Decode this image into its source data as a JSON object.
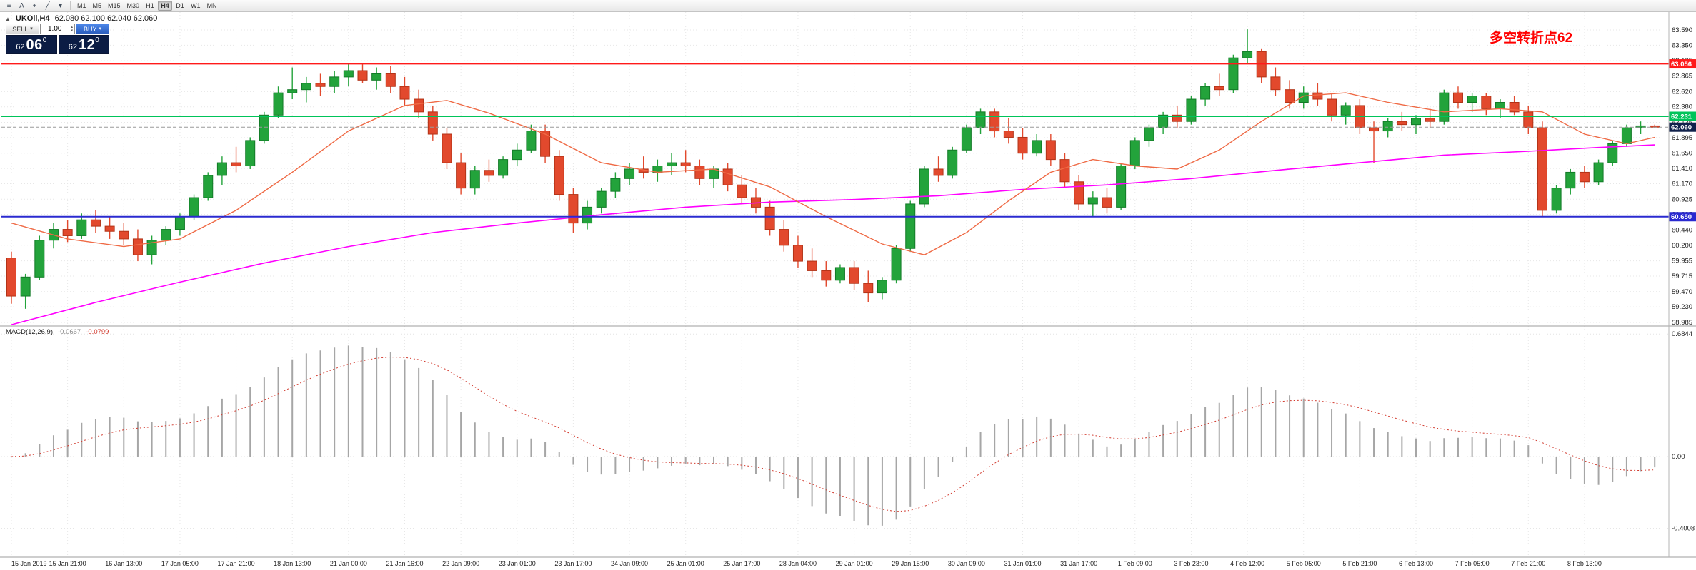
{
  "app": {
    "toolbar": {
      "icons": [
        {
          "name": "chart-menu-icon",
          "glyph": "≡"
        },
        {
          "name": "cursor-tool-icon",
          "glyph": "A"
        },
        {
          "name": "crosshair-tool-icon",
          "glyph": "+"
        },
        {
          "name": "line-tool-icon",
          "glyph": "╱"
        },
        {
          "name": "tools-dropdown-icon",
          "glyph": "▾"
        }
      ],
      "timeframes": [
        "M1",
        "M5",
        "M15",
        "M30",
        "H1",
        "H4",
        "D1",
        "W1",
        "MN"
      ],
      "active_timeframe": "H4"
    },
    "chart_header": {
      "expand_glyph": "▲",
      "symbol": "UKOil,H4",
      "ohlc": "62.080 62.100 62.040 62.060"
    },
    "trade_panel": {
      "sell_label": "SELL",
      "buy_label": "BUY",
      "volume": "1.00",
      "sell_caret": "▾",
      "buy_caret": "▾",
      "spin_up": "▴",
      "spin_down": "▾",
      "sell_price": {
        "prefix": "62",
        "big": "06",
        "sup": "0"
      },
      "buy_price": {
        "prefix": "62",
        "big": "12",
        "sup": "0"
      }
    },
    "annotation": {
      "text": "多空转折点62",
      "color": "#FF0000"
    }
  },
  "chart_data": {
    "type": "candlestick",
    "symbol": "UKOil",
    "timeframe": "H4",
    "colors": {
      "up": "#23a33b",
      "up_border": "#127a27",
      "down": "#e2492d",
      "down_border": "#b23317",
      "grid": "#e7e7e7"
    },
    "price_axis": {
      "ticks": [
        63.59,
        63.35,
        63.105,
        62.865,
        62.62,
        62.38,
        62.135,
        61.895,
        61.65,
        61.41,
        61.17,
        60.925,
        60.685,
        60.44,
        60.2,
        59.955,
        59.715,
        59.47,
        59.23,
        58.985
      ]
    },
    "time_axis": [
      "15 Jan 2019",
      "15 Jan 21:00",
      "16 Jan 13:00",
      "17 Jan 05:00",
      "17 Jan 21:00",
      "18 Jan 13:00",
      "21 Jan 00:00",
      "21 Jan 16:00",
      "22 Jan 09:00",
      "23 Jan 01:00",
      "23 Jan 17:00",
      "24 Jan 09:00",
      "25 Jan 01:00",
      "25 Jan 17:00",
      "28 Jan 04:00",
      "29 Jan 01:00",
      "29 Jan 15:00",
      "30 Jan 09:00",
      "31 Jan 01:00",
      "31 Jan 17:00",
      "1 Feb 09:00",
      "3 Feb 23:00",
      "4 Feb 12:00",
      "5 Feb 05:00",
      "5 Feb 21:00",
      "6 Feb 13:00",
      "7 Feb 05:00",
      "7 Feb 21:00",
      "8 Feb 13:00"
    ],
    "candles": [
      [
        60.0,
        60.1,
        59.28,
        59.4
      ],
      [
        59.4,
        59.75,
        59.2,
        59.7
      ],
      [
        59.7,
        60.35,
        59.65,
        60.28
      ],
      [
        60.28,
        60.55,
        60.15,
        60.45
      ],
      [
        60.45,
        60.6,
        60.25,
        60.35
      ],
      [
        60.35,
        60.7,
        60.3,
        60.6
      ],
      [
        60.6,
        60.75,
        60.4,
        60.5
      ],
      [
        60.5,
        60.65,
        60.3,
        60.42
      ],
      [
        60.42,
        60.55,
        60.2,
        60.3
      ],
      [
        60.3,
        60.45,
        59.95,
        60.05
      ],
      [
        60.05,
        60.35,
        59.9,
        60.28
      ],
      [
        60.28,
        60.5,
        60.2,
        60.45
      ],
      [
        60.45,
        60.7,
        60.35,
        60.65
      ],
      [
        60.65,
        61.0,
        60.6,
        60.95
      ],
      [
        60.95,
        61.35,
        60.9,
        61.3
      ],
      [
        61.3,
        61.6,
        61.15,
        61.5
      ],
      [
        61.5,
        61.75,
        61.35,
        61.45
      ],
      [
        61.45,
        61.9,
        61.4,
        61.85
      ],
      [
        61.85,
        62.3,
        61.8,
        62.25
      ],
      [
        62.25,
        62.7,
        62.2,
        62.6
      ],
      [
        62.6,
        63.0,
        62.5,
        62.65
      ],
      [
        62.65,
        62.85,
        62.45,
        62.75
      ],
      [
        62.75,
        62.9,
        62.55,
        62.7
      ],
      [
        62.7,
        62.95,
        62.6,
        62.85
      ],
      [
        62.85,
        63.05,
        62.7,
        62.95
      ],
      [
        62.95,
        63.05,
        62.75,
        62.8
      ],
      [
        62.8,
        63.0,
        62.65,
        62.9
      ],
      [
        62.9,
        63.02,
        62.6,
        62.7
      ],
      [
        62.7,
        62.85,
        62.4,
        62.5
      ],
      [
        62.5,
        62.65,
        62.2,
        62.3
      ],
      [
        62.3,
        62.4,
        61.85,
        61.95
      ],
      [
        61.95,
        62.05,
        61.4,
        61.5
      ],
      [
        61.5,
        61.65,
        61.0,
        61.1
      ],
      [
        61.1,
        61.45,
        61.0,
        61.38
      ],
      [
        61.38,
        61.55,
        61.2,
        61.3
      ],
      [
        61.3,
        61.6,
        61.25,
        61.55
      ],
      [
        61.55,
        61.8,
        61.45,
        61.7
      ],
      [
        61.7,
        62.1,
        61.65,
        62.0
      ],
      [
        62.0,
        62.1,
        61.5,
        61.6
      ],
      [
        61.6,
        61.7,
        60.9,
        61.0
      ],
      [
        61.0,
        61.1,
        60.4,
        60.55
      ],
      [
        60.55,
        60.9,
        60.45,
        60.8
      ],
      [
        60.8,
        61.1,
        60.7,
        61.05
      ],
      [
        61.05,
        61.35,
        60.95,
        61.25
      ],
      [
        61.25,
        61.5,
        61.15,
        61.4
      ],
      [
        61.4,
        61.6,
        61.25,
        61.35
      ],
      [
        61.35,
        61.55,
        61.2,
        61.45
      ],
      [
        61.45,
        61.65,
        61.3,
        61.5
      ],
      [
        61.5,
        61.7,
        61.35,
        61.45
      ],
      [
        61.45,
        61.55,
        61.15,
        61.25
      ],
      [
        61.25,
        61.45,
        61.1,
        61.4
      ],
      [
        61.4,
        61.5,
        61.05,
        61.15
      ],
      [
        61.15,
        61.3,
        60.85,
        60.95
      ],
      [
        60.95,
        61.1,
        60.7,
        60.8
      ],
      [
        60.8,
        60.9,
        60.35,
        60.45
      ],
      [
        60.45,
        60.6,
        60.1,
        60.2
      ],
      [
        60.2,
        60.35,
        59.85,
        59.95
      ],
      [
        59.95,
        60.15,
        59.7,
        59.8
      ],
      [
        59.8,
        59.95,
        59.55,
        59.65
      ],
      [
        59.65,
        59.9,
        59.6,
        59.85
      ],
      [
        59.85,
        59.95,
        59.5,
        59.6
      ],
      [
        59.6,
        59.8,
        59.3,
        59.45
      ],
      [
        59.45,
        59.7,
        59.35,
        59.65
      ],
      [
        59.65,
        60.2,
        59.6,
        60.15
      ],
      [
        60.15,
        60.9,
        60.1,
        60.85
      ],
      [
        60.85,
        61.45,
        60.8,
        61.4
      ],
      [
        61.4,
        61.6,
        61.2,
        61.3
      ],
      [
        61.3,
        61.75,
        61.25,
        61.7
      ],
      [
        61.7,
        62.1,
        61.65,
        62.05
      ],
      [
        62.05,
        62.35,
        61.95,
        62.3
      ],
      [
        62.3,
        62.35,
        61.9,
        62.0
      ],
      [
        62.0,
        62.2,
        61.8,
        61.9
      ],
      [
        61.9,
        62.05,
        61.55,
        61.65
      ],
      [
        61.65,
        61.95,
        61.6,
        61.85
      ],
      [
        61.85,
        61.95,
        61.45,
        61.55
      ],
      [
        61.55,
        61.65,
        61.1,
        61.2
      ],
      [
        61.2,
        61.3,
        60.75,
        60.85
      ],
      [
        60.85,
        61.05,
        60.65,
        60.95
      ],
      [
        60.95,
        61.1,
        60.7,
        60.8
      ],
      [
        60.8,
        61.5,
        60.75,
        61.45
      ],
      [
        61.45,
        61.9,
        61.4,
        61.85
      ],
      [
        61.85,
        62.1,
        61.75,
        62.05
      ],
      [
        62.05,
        62.3,
        61.95,
        62.25
      ],
      [
        62.25,
        62.4,
        62.05,
        62.15
      ],
      [
        62.15,
        62.55,
        62.1,
        62.5
      ],
      [
        62.5,
        62.75,
        62.4,
        62.7
      ],
      [
        62.7,
        62.9,
        62.55,
        62.65
      ],
      [
        62.65,
        63.2,
        62.6,
        63.15
      ],
      [
        63.15,
        63.6,
        63.05,
        63.25
      ],
      [
        63.25,
        63.3,
        62.75,
        62.85
      ],
      [
        62.85,
        63.0,
        62.55,
        62.65
      ],
      [
        62.65,
        62.8,
        62.35,
        62.45
      ],
      [
        62.45,
        62.7,
        62.35,
        62.6
      ],
      [
        62.6,
        62.75,
        62.4,
        62.5
      ],
      [
        62.5,
        62.6,
        62.15,
        62.25
      ],
      [
        62.25,
        62.45,
        62.1,
        62.4
      ],
      [
        62.4,
        62.5,
        61.95,
        62.05
      ],
      [
        62.05,
        62.15,
        61.5,
        62.0
      ],
      [
        62.0,
        62.2,
        61.9,
        62.15
      ],
      [
        62.15,
        62.3,
        62.0,
        62.1
      ],
      [
        62.1,
        62.25,
        61.95,
        62.2
      ],
      [
        62.2,
        62.35,
        62.05,
        62.15
      ],
      [
        62.15,
        62.65,
        62.1,
        62.6
      ],
      [
        62.6,
        62.7,
        62.35,
        62.45
      ],
      [
        62.45,
        62.6,
        62.3,
        62.55
      ],
      [
        62.55,
        62.6,
        62.25,
        62.35
      ],
      [
        62.35,
        62.5,
        62.2,
        62.45
      ],
      [
        62.45,
        62.55,
        62.25,
        62.3
      ],
      [
        62.3,
        62.4,
        61.95,
        62.05
      ],
      [
        62.05,
        62.15,
        60.65,
        60.75
      ],
      [
        60.75,
        61.15,
        60.7,
        61.1
      ],
      [
        61.1,
        61.4,
        61.0,
        61.35
      ],
      [
        61.35,
        61.45,
        61.1,
        61.2
      ],
      [
        61.2,
        61.55,
        61.15,
        61.5
      ],
      [
        61.5,
        61.85,
        61.45,
        61.8
      ],
      [
        61.8,
        62.1,
        61.75,
        62.05
      ],
      [
        62.05,
        62.15,
        61.95,
        62.08
      ],
      [
        62.08,
        62.1,
        62.04,
        62.06
      ]
    ],
    "hlines": [
      {
        "price": 63.056,
        "color": "#ff1a1a",
        "label": "63.056",
        "width": 1.6
      },
      {
        "price": 62.231,
        "color": "#00c45a",
        "label": "62.231",
        "width": 2
      },
      {
        "price": 60.65,
        "color": "#2a2ad0",
        "label": "60.650",
        "width": 2
      }
    ],
    "current_price": {
      "price": 62.06,
      "label": "62.060",
      "tag_color": "#10214b",
      "line_color": "#9a9a9a"
    },
    "ma_fast": {
      "name": "MA fast",
      "color": "#ef6a45",
      "points": [
        [
          0,
          60.55
        ],
        [
          4,
          60.3
        ],
        [
          8,
          60.18
        ],
        [
          12,
          60.3
        ],
        [
          16,
          60.75
        ],
        [
          20,
          61.35
        ],
        [
          24,
          62.0
        ],
        [
          28,
          62.4
        ],
        [
          31,
          62.48
        ],
        [
          34,
          62.28
        ],
        [
          38,
          61.95
        ],
        [
          42,
          61.5
        ],
        [
          46,
          61.35
        ],
        [
          50,
          61.4
        ],
        [
          54,
          61.12
        ],
        [
          58,
          60.65
        ],
        [
          62,
          60.22
        ],
        [
          65,
          60.05
        ],
        [
          68,
          60.4
        ],
        [
          71,
          60.9
        ],
        [
          74,
          61.35
        ],
        [
          77,
          61.55
        ],
        [
          80,
          61.45
        ],
        [
          83,
          61.4
        ],
        [
          86,
          61.7
        ],
        [
          89,
          62.15
        ],
        [
          92,
          62.55
        ],
        [
          95,
          62.6
        ],
        [
          98,
          62.45
        ],
        [
          102,
          62.3
        ],
        [
          106,
          62.35
        ],
        [
          109,
          62.3
        ],
        [
          112,
          61.95
        ],
        [
          115,
          61.8
        ],
        [
          117,
          61.9
        ]
      ]
    },
    "ma_slow": {
      "name": "MA slow",
      "color": "#ff00ff",
      "points": [
        [
          0,
          58.95
        ],
        [
          6,
          59.3
        ],
        [
          12,
          59.62
        ],
        [
          18,
          59.92
        ],
        [
          24,
          60.18
        ],
        [
          30,
          60.4
        ],
        [
          36,
          60.55
        ],
        [
          42,
          60.68
        ],
        [
          48,
          60.8
        ],
        [
          54,
          60.88
        ],
        [
          60,
          60.92
        ],
        [
          66,
          60.98
        ],
        [
          72,
          61.08
        ],
        [
          78,
          61.15
        ],
        [
          84,
          61.25
        ],
        [
          90,
          61.38
        ],
        [
          96,
          61.5
        ],
        [
          102,
          61.62
        ],
        [
          108,
          61.68
        ],
        [
          113,
          61.74
        ],
        [
          117,
          61.78
        ]
      ]
    },
    "macd": {
      "label": "MACD(12,26,9)",
      "value": "-0.0667",
      "signal_value": "-0.0799",
      "histogram_color": "#a6a6a6",
      "signal_color": "#d23b2f",
      "scale": [
        {
          "v": 0.6844,
          "t": "0.6844"
        },
        {
          "v": 0.0,
          "t": "0.00"
        },
        {
          "v": -0.4008,
          "t": "-0.4008"
        }
      ]
    }
  }
}
